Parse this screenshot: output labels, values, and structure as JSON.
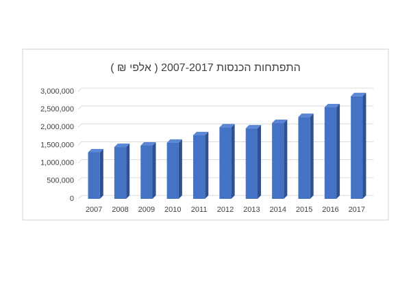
{
  "chart_data": {
    "type": "bar",
    "title": "התפתחות הכנסות 2007-2017 ( אלפי ₪ )",
    "categories": [
      "2007",
      "2008",
      "2009",
      "2010",
      "2011",
      "2012",
      "2013",
      "2014",
      "2015",
      "2016",
      "2017"
    ],
    "values": [
      1300000,
      1450000,
      1490000,
      1570000,
      1780000,
      2000000,
      1970000,
      2120000,
      2290000,
      2560000,
      2870000
    ],
    "color": "#4472c4",
    "ylim": [
      0,
      3000000
    ],
    "yticks": [
      0,
      {
        "value": 500000,
        "label": "500,000"
      },
      {
        "value": 1000000,
        "label": "1,000,000"
      },
      {
        "value": 1500000,
        "label": "1,500,000"
      },
      {
        "value": 2000000,
        "label": "2,000,000"
      },
      {
        "value": 2500000,
        "label": "2,500,000"
      },
      {
        "value": 3000000,
        "label": "3,000,000"
      }
    ],
    "grid": true
  }
}
